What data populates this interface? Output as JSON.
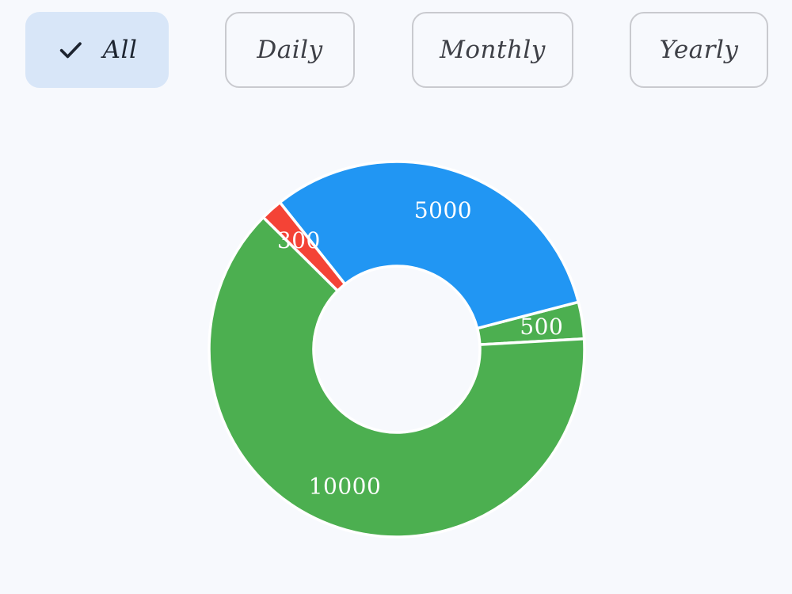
{
  "filters": {
    "all": "All",
    "daily": "Daily",
    "monthly": "Monthly",
    "yearly": "Yearly",
    "selected": "all"
  },
  "colors": {
    "blue": "#2196f3",
    "green": "#4caf50",
    "red": "#f44336",
    "chip_selected_bg": "#d8e6f8",
    "background": "#f7f9fd"
  },
  "chart_data": {
    "type": "pie",
    "donut": true,
    "legend": "none",
    "start_angle_deg": 3.2,
    "slices": [
      {
        "label": "500",
        "value": 500,
        "color": "#4caf50"
      },
      {
        "label": "5000",
        "value": 5000,
        "color": "#2196f3"
      },
      {
        "label": "300",
        "value": 300,
        "color": "#f44336"
      },
      {
        "label": "10000",
        "value": 10000,
        "color": "#4caf50"
      }
    ]
  }
}
